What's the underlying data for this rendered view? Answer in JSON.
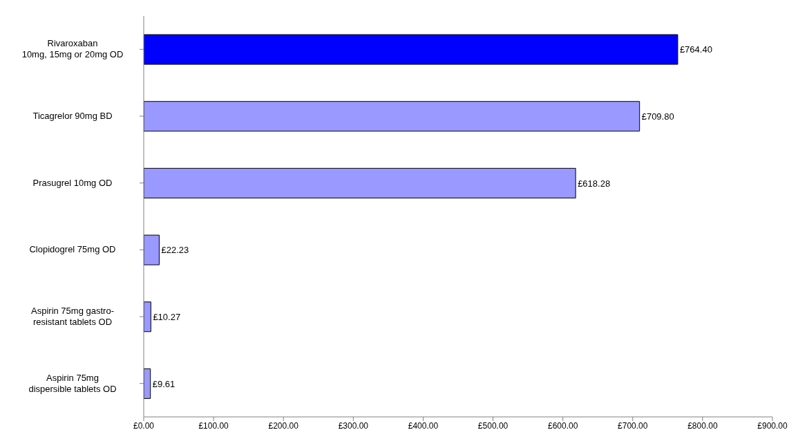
{
  "chart_data": {
    "type": "bar",
    "orientation": "horizontal",
    "categories": [
      "Rivaroxaban\n10mg, 15mg or 20mg OD",
      "Ticagrelor 90mg BD",
      "Prasugrel 10mg OD",
      "Clopidogrel 75mg OD",
      "Aspirin 75mg gastro-\nresistant tablets OD",
      "Aspirin 75mg\ndispersible tablets OD"
    ],
    "values": [
      764.4,
      709.8,
      618.28,
      22.23,
      10.27,
      9.61
    ],
    "value_labels": [
      "£764.40",
      "£709.80",
      "£618.28",
      "£22.23",
      "£10.27",
      "£9.61"
    ],
    "colors": [
      "#0000ff",
      "#9999ff",
      "#9999ff",
      "#9999ff",
      "#9999ff",
      "#9999ff"
    ],
    "xlim": [
      0,
      900
    ],
    "xticks": [
      {
        "value": 0,
        "label": "£0.00"
      },
      {
        "value": 100,
        "label": "£100.00"
      },
      {
        "value": 200,
        "label": "£200.00"
      },
      {
        "value": 300,
        "label": "£300.00"
      },
      {
        "value": 400,
        "label": "£400.00"
      },
      {
        "value": 500,
        "label": "£500.00"
      },
      {
        "value": 600,
        "label": "£600.00"
      },
      {
        "value": 700,
        "label": "£700.00"
      },
      {
        "value": 800,
        "label": "£800.00"
      },
      {
        "value": 900,
        "label": "£900.00"
      }
    ],
    "grid": false,
    "legend": false
  }
}
